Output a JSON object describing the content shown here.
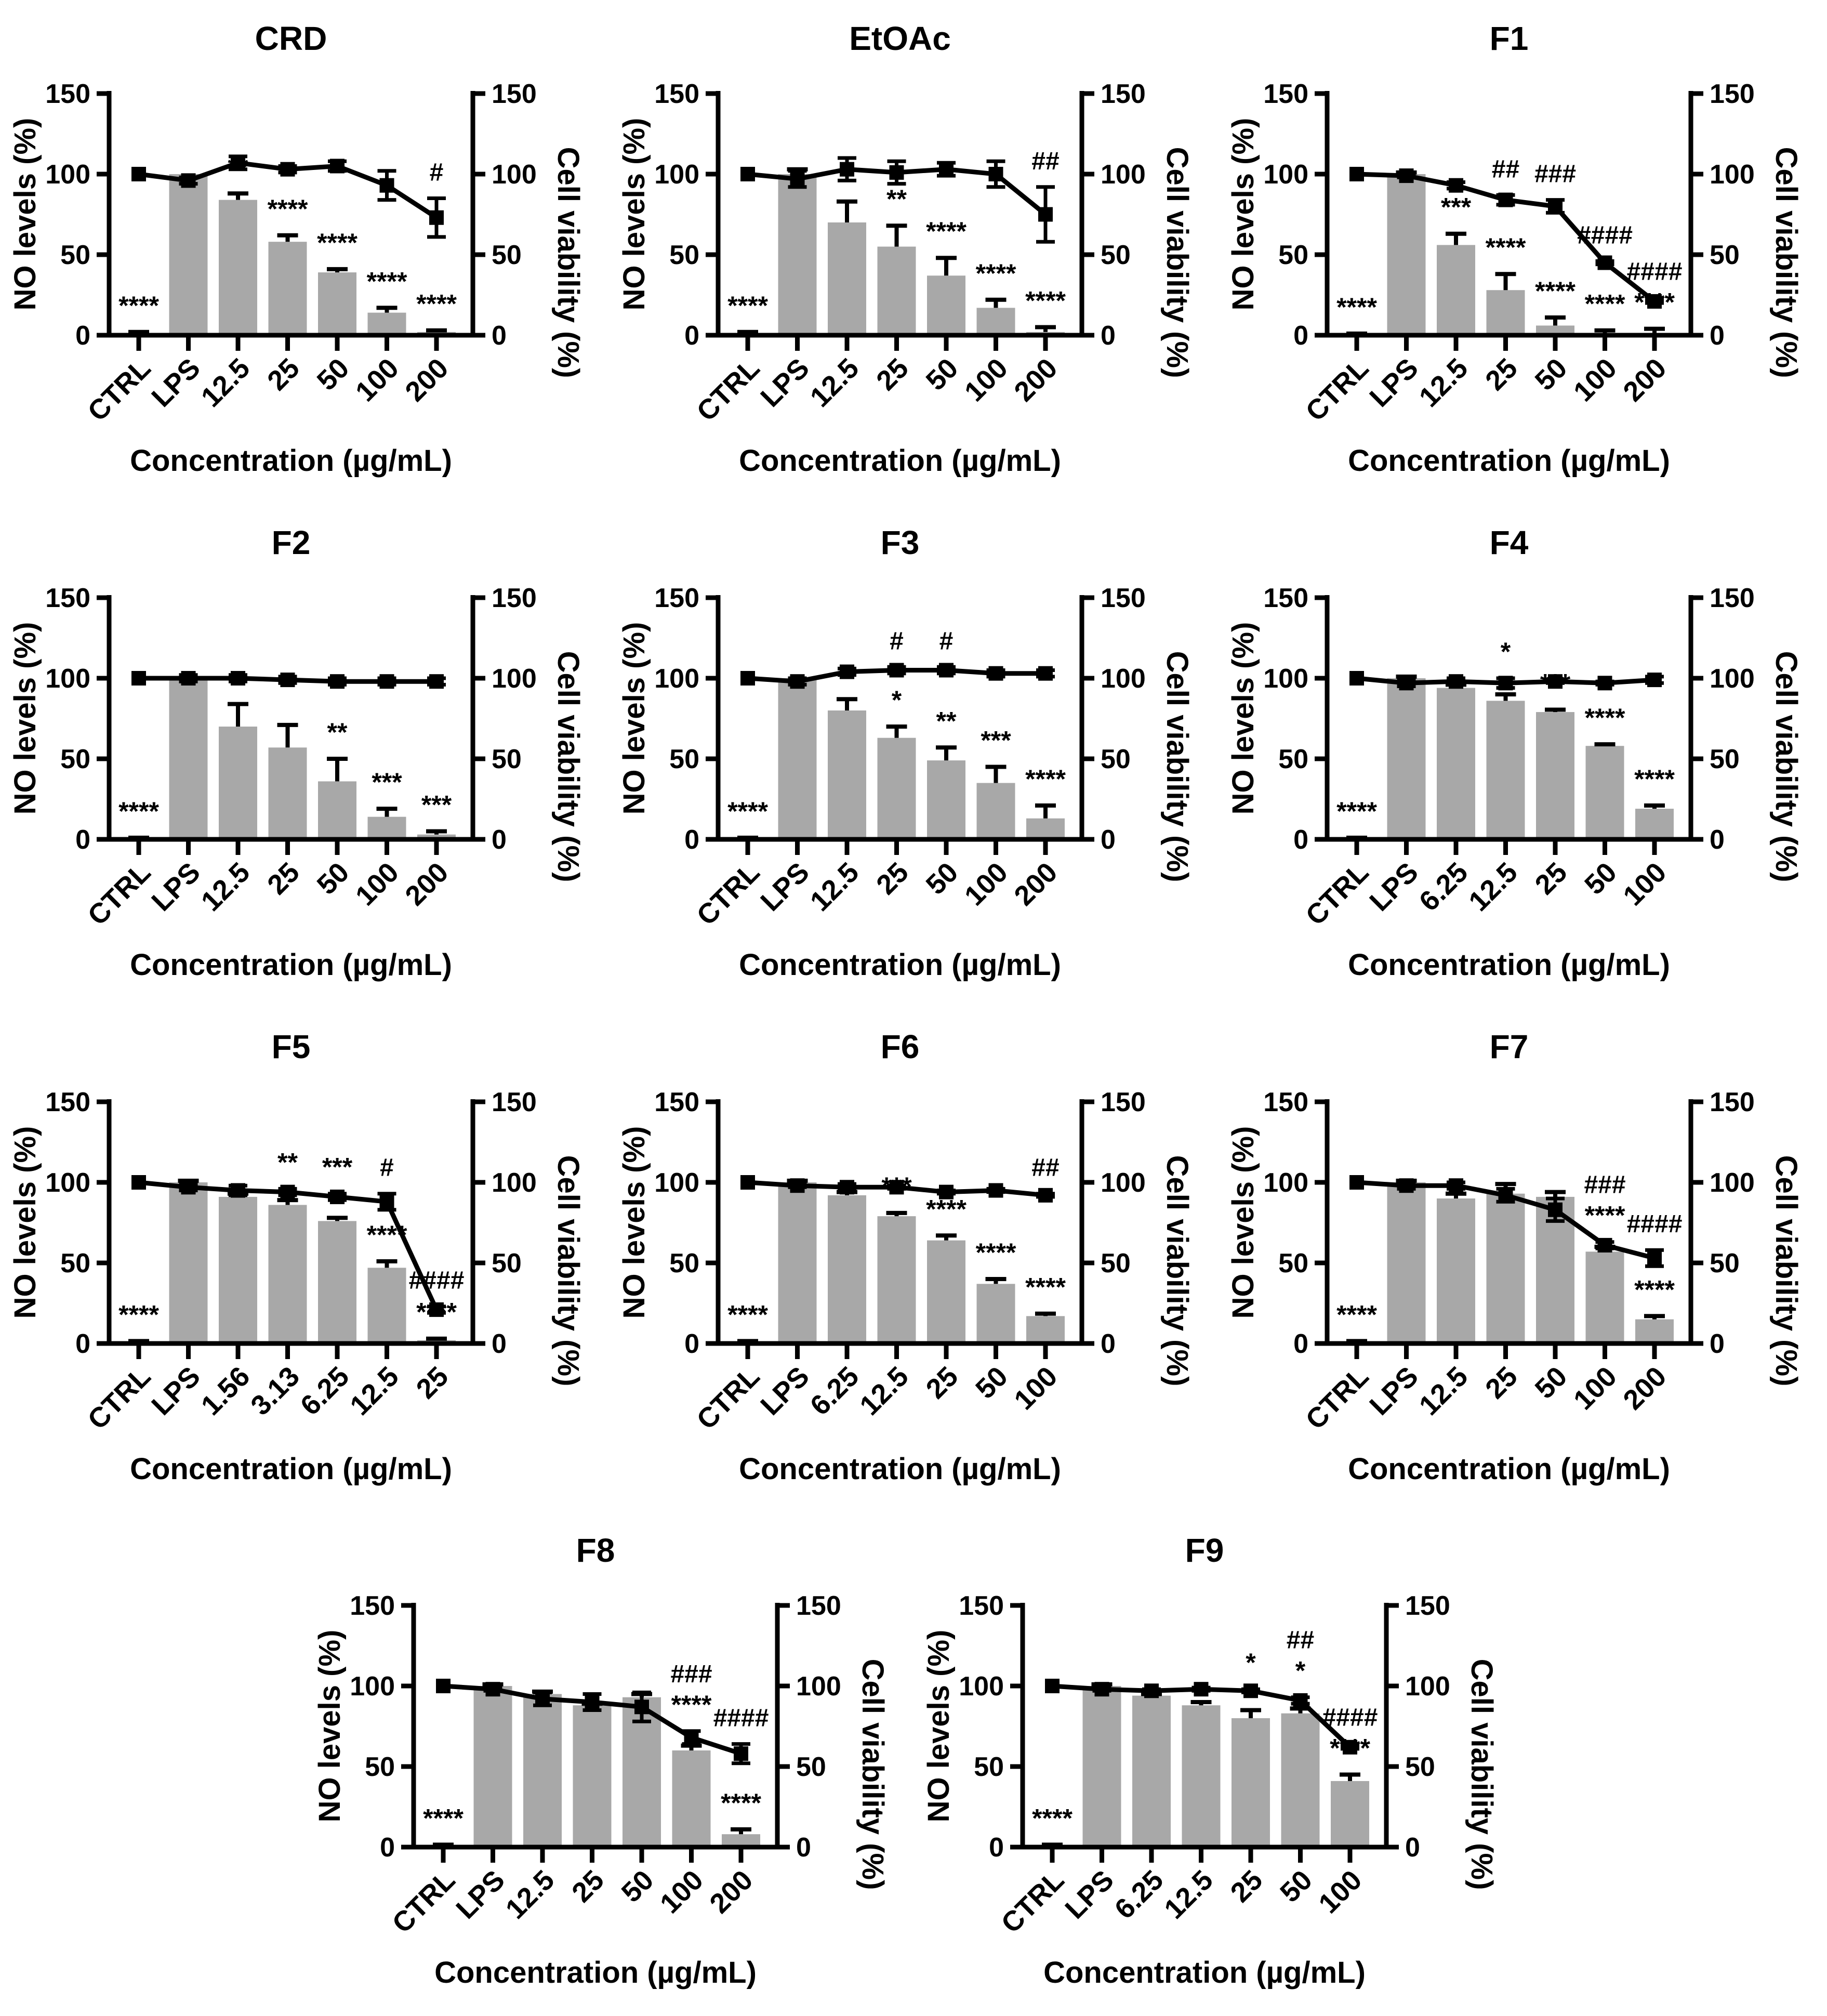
{
  "figure": {
    "x_label": "Concentration (µg/mL)",
    "left_y_label": "NO levels (%)",
    "right_y_label": "Cell viability (%)",
    "bar_series_name": "NO levels (%)",
    "line_series_name": "Cell viability (%)",
    "bar_color": "#a8a8a8",
    "line_color": "#000000",
    "background_color": "#ffffff",
    "y_ticks": [
      0,
      50,
      100,
      150
    ],
    "ylim": [
      0,
      150
    ]
  },
  "chart_data": [
    {
      "type": "bar",
      "title": "CRD",
      "categories": [
        "CTRL",
        "LPS",
        "12.5",
        "25",
        "50",
        "100",
        "200"
      ],
      "bars": {
        "values": [
          1,
          100,
          84,
          58,
          39,
          14,
          2
        ],
        "errors": [
          1,
          0,
          4,
          4,
          2,
          3,
          1
        ],
        "annotations": [
          "****",
          "",
          "**",
          "****",
          "****",
          "****",
          "****"
        ]
      },
      "line": {
        "values": [
          100,
          96,
          107,
          103,
          105,
          93,
          73
        ],
        "errors": [
          0,
          2,
          4,
          2,
          3,
          9,
          12
        ],
        "annotations": [
          "",
          "",
          "",
          "",
          "",
          "",
          "#"
        ]
      }
    },
    {
      "type": "bar",
      "title": "EtOAc",
      "categories": [
        "CTRL",
        "LPS",
        "12.5",
        "25",
        "50",
        "100",
        "200"
      ],
      "bars": {
        "values": [
          1,
          100,
          70,
          55,
          37,
          17,
          2
        ],
        "errors": [
          1,
          3,
          13,
          13,
          11,
          5,
          3
        ],
        "annotations": [
          "****",
          "",
          "",
          "**",
          "****",
          "****",
          "****"
        ]
      },
      "line": {
        "values": [
          100,
          97,
          103,
          101,
          103,
          100,
          75
        ],
        "errors": [
          0,
          5,
          7,
          7,
          4,
          8,
          17
        ],
        "annotations": [
          "",
          "",
          "",
          "",
          "",
          "",
          "##"
        ]
      }
    },
    {
      "type": "bar",
      "title": "F1",
      "categories": [
        "CTRL",
        "LPS",
        "12.5",
        "25",
        "50",
        "100",
        "200"
      ],
      "bars": {
        "values": [
          0.5,
          100,
          56,
          28,
          6,
          1,
          1
        ],
        "errors": [
          0.5,
          1,
          7,
          10,
          5,
          2,
          3
        ],
        "annotations": [
          "****",
          "",
          "***",
          "****",
          "****",
          "****",
          "****"
        ]
      },
      "line": {
        "values": [
          100,
          99,
          93,
          84,
          80,
          45,
          21
        ],
        "errors": [
          0,
          1,
          2,
          3,
          4,
          1,
          1
        ],
        "annotations": [
          "",
          "",
          "",
          "##",
          "###",
          "####",
          "####"
        ]
      }
    },
    {
      "type": "bar",
      "title": "F2",
      "categories": [
        "CTRL",
        "LPS",
        "12.5",
        "25",
        "50",
        "100",
        "200"
      ],
      "bars": {
        "values": [
          0.5,
          100,
          70,
          57,
          36,
          14,
          3
        ],
        "errors": [
          0.5,
          0,
          14,
          14,
          14,
          5,
          2
        ],
        "annotations": [
          "****",
          "",
          "",
          "",
          "**",
          "***",
          "***"
        ]
      },
      "line": {
        "values": [
          100,
          100,
          100,
          99,
          98,
          98,
          98
        ],
        "errors": [
          0,
          2,
          2,
          2,
          2,
          2,
          2
        ],
        "annotations": [
          "",
          "",
          "",
          "",
          "",
          "",
          ""
        ]
      }
    },
    {
      "type": "bar",
      "title": "F3",
      "categories": [
        "CTRL",
        "LPS",
        "12.5",
        "25",
        "50",
        "100",
        "200"
      ],
      "bars": {
        "values": [
          0.5,
          100,
          80,
          63,
          49,
          35,
          13
        ],
        "errors": [
          0.5,
          0,
          7,
          7,
          8,
          10,
          8
        ],
        "annotations": [
          "****",
          "",
          "",
          "*",
          "**",
          "***",
          "****"
        ]
      },
      "line": {
        "values": [
          100,
          98,
          104,
          105,
          105,
          103,
          103
        ],
        "errors": [
          0,
          2,
          2,
          2,
          2,
          2,
          2
        ],
        "annotations": [
          "",
          "",
          "",
          "#",
          "#",
          "",
          ""
        ]
      }
    },
    {
      "type": "bar",
      "title": "F4",
      "categories": [
        "CTRL",
        "LPS",
        "6.25",
        "12.5",
        "25",
        "50",
        "100"
      ],
      "bars": {
        "values": [
          0.5,
          100,
          94,
          86,
          79,
          58,
          19
        ],
        "errors": [
          0.5,
          1,
          2,
          4,
          1.5,
          1,
          2
        ],
        "annotations": [
          "****",
          "",
          "",
          "*",
          "***",
          "****",
          "****"
        ]
      },
      "line": {
        "values": [
          100,
          97,
          98,
          97,
          98,
          97,
          99
        ],
        "errors": [
          0,
          2,
          2,
          3,
          1,
          1,
          2
        ],
        "annotations": [
          "",
          "",
          "",
          "",
          "",
          "",
          ""
        ]
      }
    },
    {
      "type": "bar",
      "title": "F5",
      "categories": [
        "CTRL",
        "LPS",
        "1.56",
        "3.13",
        "6.25",
        "12.5",
        "25"
      ],
      "bars": {
        "values": [
          1,
          100,
          91,
          86,
          76,
          47,
          2
        ],
        "errors": [
          0.5,
          1,
          2,
          3,
          2,
          4,
          1
        ],
        "annotations": [
          "****",
          "",
          "",
          "**",
          "***",
          "****",
          "****"
        ]
      },
      "line": {
        "values": [
          100,
          97,
          95,
          94,
          91,
          88,
          21
        ],
        "errors": [
          0,
          2,
          3,
          2,
          2,
          5,
          2
        ],
        "annotations": [
          "",
          "",
          "",
          "",
          "",
          "#",
          "####"
        ]
      }
    },
    {
      "type": "bar",
      "title": "F6",
      "categories": [
        "CTRL",
        "LPS",
        "6.25",
        "12.5",
        "25",
        "50",
        "100"
      ],
      "bars": {
        "values": [
          1,
          100,
          92,
          79,
          64,
          37,
          17
        ],
        "errors": [
          0.5,
          1,
          2,
          2,
          3,
          3,
          1.5
        ],
        "annotations": [
          "****",
          "",
          "",
          "***",
          "****",
          "****",
          "****"
        ]
      },
      "line": {
        "values": [
          100,
          98,
          97,
          97,
          94,
          95,
          92
        ],
        "errors": [
          0,
          1,
          2,
          1,
          1,
          1,
          1
        ],
        "annotations": [
          "",
          "",
          "",
          "",
          "",
          "",
          "##"
        ]
      }
    },
    {
      "type": "bar",
      "title": "F7",
      "categories": [
        "CTRL",
        "LPS",
        "12.5",
        "25",
        "50",
        "100",
        "200"
      ],
      "bars": {
        "values": [
          1,
          100,
          90,
          93,
          91,
          57,
          15
        ],
        "errors": [
          0.5,
          1,
          3,
          6,
          3,
          3,
          2
        ],
        "annotations": [
          "****",
          "",
          "",
          "",
          "",
          "****",
          "****"
        ]
      },
      "line": {
        "values": [
          100,
          98,
          98,
          92,
          83,
          61,
          53
        ],
        "errors": [
          0,
          2,
          2,
          4,
          7,
          2,
          5
        ],
        "annotations": [
          "",
          "",
          "",
          "",
          "",
          "###",
          "####"
        ]
      }
    },
    {
      "type": "bar",
      "title": "F8",
      "categories": [
        "CTRL",
        "LPS",
        "12.5",
        "25",
        "50",
        "100",
        "200"
      ],
      "bars": {
        "values": [
          1,
          100,
          95,
          88,
          93,
          60,
          8
        ],
        "errors": [
          0.5,
          1,
          1.5,
          1,
          2,
          3,
          3
        ],
        "annotations": [
          "****",
          "",
          "",
          "",
          "",
          "****",
          "****"
        ]
      },
      "line": {
        "values": [
          100,
          98,
          92,
          90,
          87,
          68,
          58
        ],
        "errors": [
          0,
          1,
          4,
          5,
          9,
          4,
          6
        ],
        "annotations": [
          "",
          "",
          "",
          "",
          "",
          "###",
          "####"
        ]
      }
    },
    {
      "type": "bar",
      "title": "F9",
      "categories": [
        "CTRL",
        "LPS",
        "6.25",
        "12.5",
        "25",
        "50",
        "100"
      ],
      "bars": {
        "values": [
          1,
          100,
          94,
          88,
          80,
          83,
          41
        ],
        "errors": [
          0.5,
          1,
          1,
          2,
          5,
          3,
          4
        ],
        "annotations": [
          "****",
          "",
          "",
          "",
          "*",
          "*",
          "****"
        ]
      },
      "line": {
        "values": [
          100,
          98,
          97,
          98,
          97,
          91,
          62
        ],
        "errors": [
          0,
          1,
          1,
          1,
          1,
          2,
          1
        ],
        "annotations": [
          "",
          "",
          "",
          "",
          "",
          "##",
          "####"
        ]
      }
    }
  ]
}
